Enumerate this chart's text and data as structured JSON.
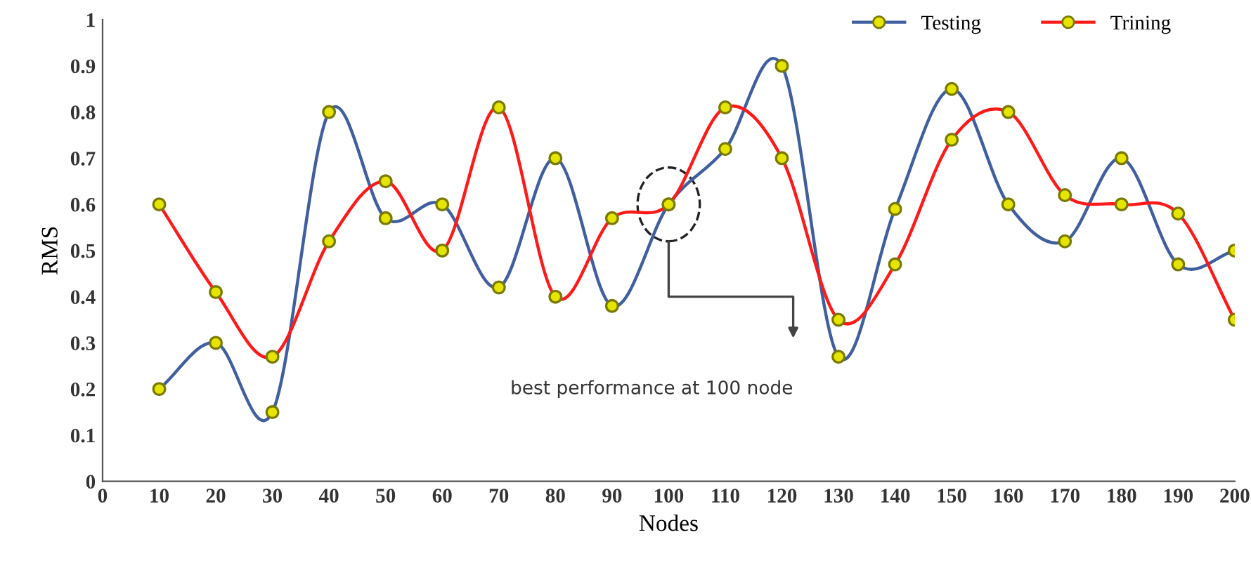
{
  "chart_data": {
    "type": "line",
    "xlabel": "Nodes",
    "ylabel": "RMS",
    "x": [
      10,
      20,
      30,
      40,
      50,
      60,
      70,
      80,
      90,
      100,
      110,
      120,
      130,
      140,
      150,
      160,
      170,
      180,
      190,
      200
    ],
    "series": [
      {
        "name": "Testing",
        "color": "#3f5f9f",
        "values": [
          0.2,
          0.3,
          0.15,
          0.8,
          0.57,
          0.6,
          0.42,
          0.7,
          0.38,
          0.6,
          0.72,
          0.9,
          0.27,
          0.59,
          0.85,
          0.6,
          0.52,
          0.7,
          0.47,
          0.5
        ]
      },
      {
        "name": "Trining",
        "color": "#ff1a1a",
        "values": [
          0.6,
          0.41,
          0.27,
          0.52,
          0.65,
          0.5,
          0.81,
          0.4,
          0.57,
          0.6,
          0.81,
          0.7,
          0.35,
          0.47,
          0.74,
          0.8,
          0.62,
          0.6,
          0.58,
          0.35
        ]
      }
    ],
    "xlim": [
      0,
      200
    ],
    "xticks": [
      0,
      10,
      20,
      30,
      40,
      50,
      60,
      70,
      80,
      90,
      100,
      110,
      120,
      130,
      140,
      150,
      160,
      170,
      180,
      190,
      200
    ],
    "ylim": [
      0,
      1
    ],
    "yticks": [
      0,
      0.1,
      0.2,
      0.3,
      0.4,
      0.5,
      0.6,
      0.7,
      0.8,
      0.9,
      1
    ],
    "annotations": [
      "best performance at 100 node"
    ],
    "legend": "top right",
    "marker": "circle",
    "line_style": "solid",
    "grid": false
  }
}
